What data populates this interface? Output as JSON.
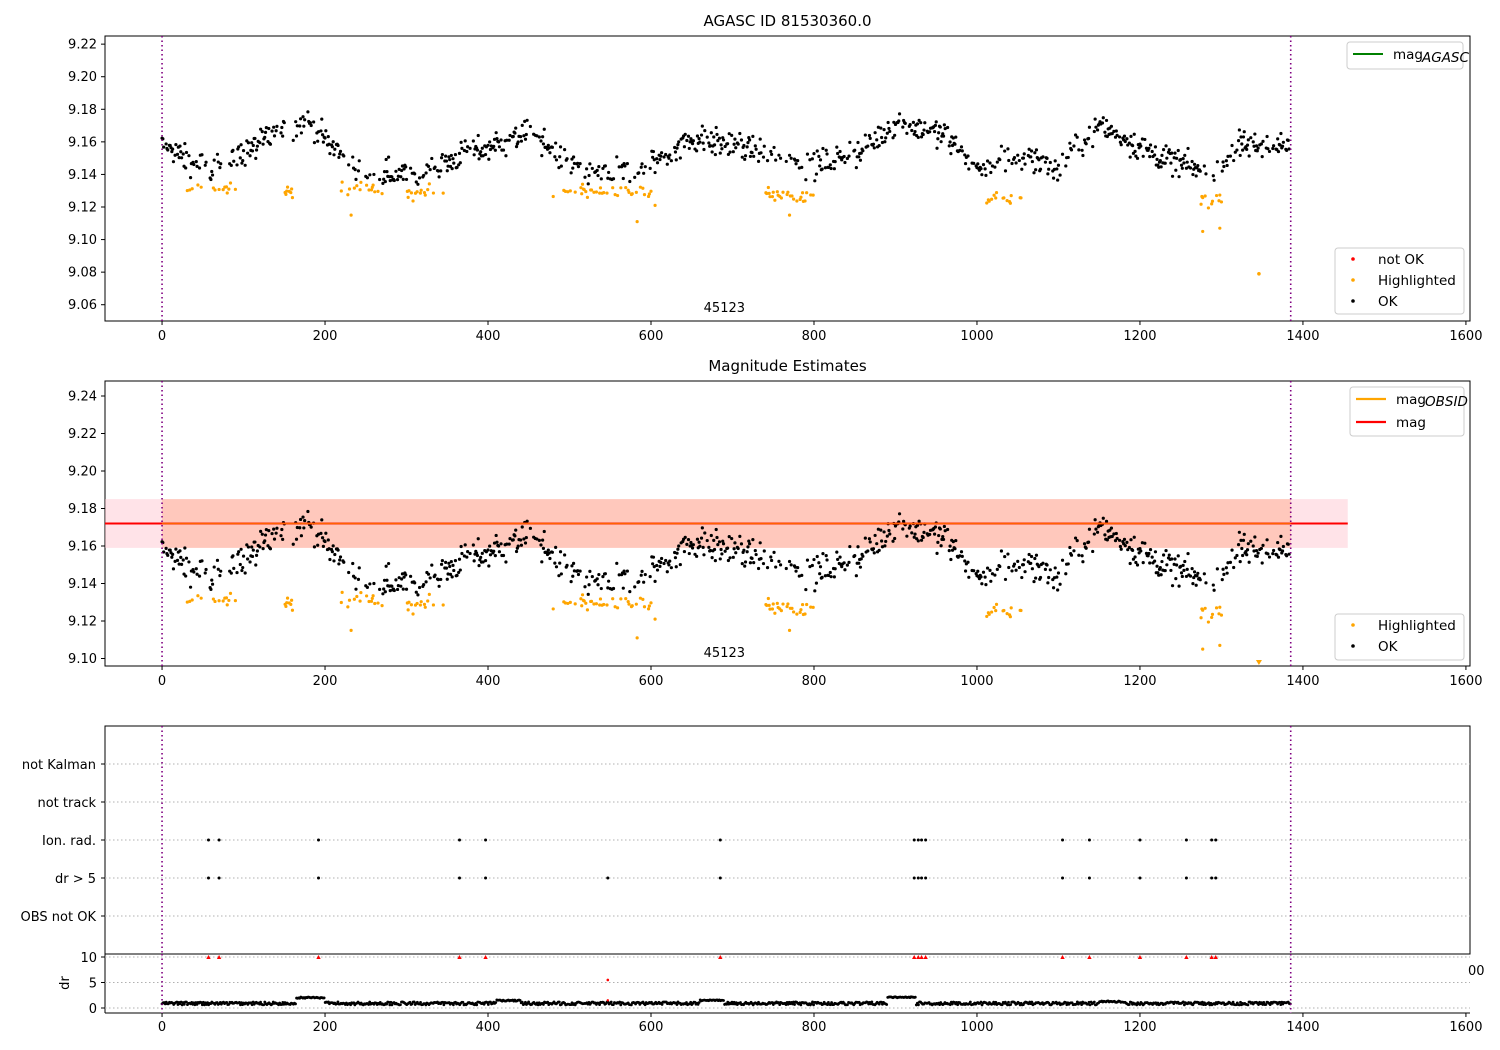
{
  "chart_data": [
    {
      "type": "scatter",
      "title": "AGASC ID 81530360.0",
      "xlim": [
        -70,
        1605
      ],
      "ylim": [
        9.05,
        9.225
      ],
      "xticks": [
        "0",
        "200",
        "400",
        "600",
        "800",
        "1000",
        "1200",
        "1400",
        "1600"
      ],
      "yticks": [
        "9.06",
        "9.08",
        "9.10",
        "9.12",
        "9.14",
        "9.16",
        "9.18",
        "9.20",
        "9.22"
      ],
      "obsid_label": "45123",
      "obs_bounds_x": [
        0,
        1385
      ],
      "legend_lines": [
        {
          "name": "mag",
          "sub": "AGASC",
          "color": "#008000"
        }
      ],
      "legend_points": [
        {
          "name": "not OK",
          "color": "#ff0000"
        },
        {
          "name": "Highlighted",
          "color": "#ffa500"
        },
        {
          "name": "OK",
          "color": "#000000"
        }
      ],
      "series": [
        {
          "name": "OK",
          "color": "#000000",
          "baseline": [
            [
              0,
              9.158
            ],
            [
              60,
              9.142
            ],
            [
              130,
              9.162
            ],
            [
              180,
              9.172
            ],
            [
              240,
              9.142
            ],
            [
              300,
              9.14
            ],
            [
              390,
              9.155
            ],
            [
              450,
              9.165
            ],
            [
              520,
              9.142
            ],
            [
              580,
              9.14
            ],
            [
              650,
              9.162
            ],
            [
              720,
              9.156
            ],
            [
              800,
              9.145
            ],
            [
              860,
              9.155
            ],
            [
              900,
              9.172
            ],
            [
              960,
              9.165
            ],
            [
              1000,
              9.142
            ],
            [
              1060,
              9.152
            ],
            [
              1100,
              9.142
            ],
            [
              1150,
              9.17
            ],
            [
              1220,
              9.152
            ],
            [
              1290,
              9.14
            ],
            [
              1320,
              9.158
            ],
            [
              1385,
              9.158
            ]
          ],
          "spread": 0.012
        },
        {
          "name": "Highlighted",
          "color": "#ffa500",
          "clusters": [
            [
              30,
              90,
              9.131
            ],
            [
              150,
              160,
              9.13
            ],
            [
              220,
              270,
              9.131
            ],
            [
              300,
              345,
              9.129
            ],
            [
              480,
              600,
              9.129
            ],
            [
              740,
              800,
              9.127
            ],
            [
              1010,
              1055,
              9.126
            ],
            [
              1275,
              1300,
              9.125
            ]
          ],
          "extra": [
            [
              232,
              9.115
            ],
            [
              583,
              9.111
            ],
            [
              605,
              9.121
            ],
            [
              770,
              9.115
            ],
            [
              1277,
              9.105
            ],
            [
              1298,
              9.107
            ]
          ]
        },
        {
          "name": "not OK",
          "color": "#ff0000",
          "points": []
        }
      ],
      "outliers": [
        [
          1346,
          9.079
        ]
      ]
    },
    {
      "type": "scatter",
      "title": "Magnitude Estimates",
      "xlim": [
        -70,
        1605
      ],
      "ylim": [
        9.096,
        9.248
      ],
      "xticks": [
        "0",
        "200",
        "400",
        "600",
        "800",
        "1000",
        "1200",
        "1400",
        "1600"
      ],
      "yticks": [
        "9.10",
        "9.12",
        "9.14",
        "9.16",
        "9.18",
        "9.20",
        "9.22",
        "9.24"
      ],
      "obsid_label": "45123",
      "mag": 9.172,
      "mag_band": [
        9.159,
        9.185
      ],
      "mag_obsid": 9.172,
      "legend_lines": [
        {
          "name": "mag",
          "sub": "OBSID",
          "color": "#ffa500"
        },
        {
          "name": "mag",
          "sub": "",
          "color": "#ff0000"
        }
      ],
      "legend_points": [
        {
          "name": "Highlighted",
          "color": "#ffa500"
        },
        {
          "name": "OK",
          "color": "#000000"
        }
      ]
    },
    {
      "type": "scatter",
      "xlim": [
        -70,
        1605
      ],
      "categories": [
        "not Kalman",
        "not track",
        "Ion. rad.",
        "dr > 5",
        "OBS not OK"
      ],
      "ion_rad_x": [
        57,
        70,
        192,
        365,
        397,
        685,
        923,
        928,
        932,
        937,
        1105,
        1138,
        1200,
        1257,
        1288,
        1293
      ],
      "dr_gt5_x": [
        57,
        70,
        192,
        365,
        397,
        547,
        685,
        923,
        928,
        932,
        937,
        1105,
        1138,
        1200,
        1257,
        1288,
        1293
      ],
      "dr_ylabel": "dr",
      "dr_yticks": [
        "0",
        "5",
        "10"
      ],
      "dr_overflow_tick": "00",
      "dr_big_x": [
        57,
        70,
        192,
        365,
        397,
        685,
        923,
        928,
        932,
        937,
        1105,
        1138,
        1200,
        1257,
        1288,
        1293
      ],
      "dr_mid": [
        [
          547,
          5.5
        ]
      ],
      "xticks": [
        "0",
        "200",
        "400",
        "600",
        "800",
        "1000",
        "1200",
        "1400",
        "1600"
      ]
    }
  ]
}
